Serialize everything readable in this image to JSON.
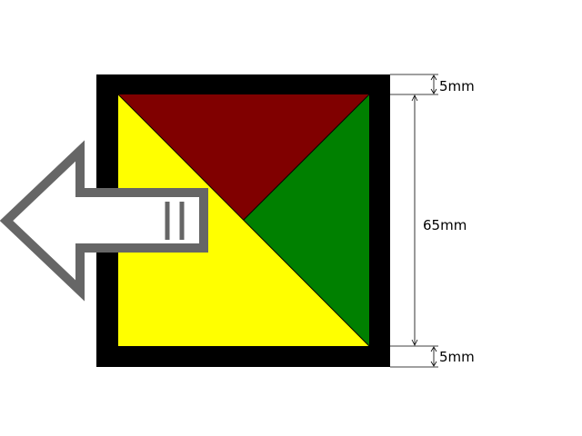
{
  "diagram": {
    "colors": {
      "frame": "#000000",
      "top_triangle": "#800000",
      "right_triangle": "#008000",
      "left_triangle": "#ffff00",
      "arrow_outline": "#666666",
      "arrow_fill": "#ffffff"
    },
    "dimensions": {
      "top_border": "5mm",
      "inner_height": "65mm",
      "bottom_border": "5mm"
    }
  }
}
